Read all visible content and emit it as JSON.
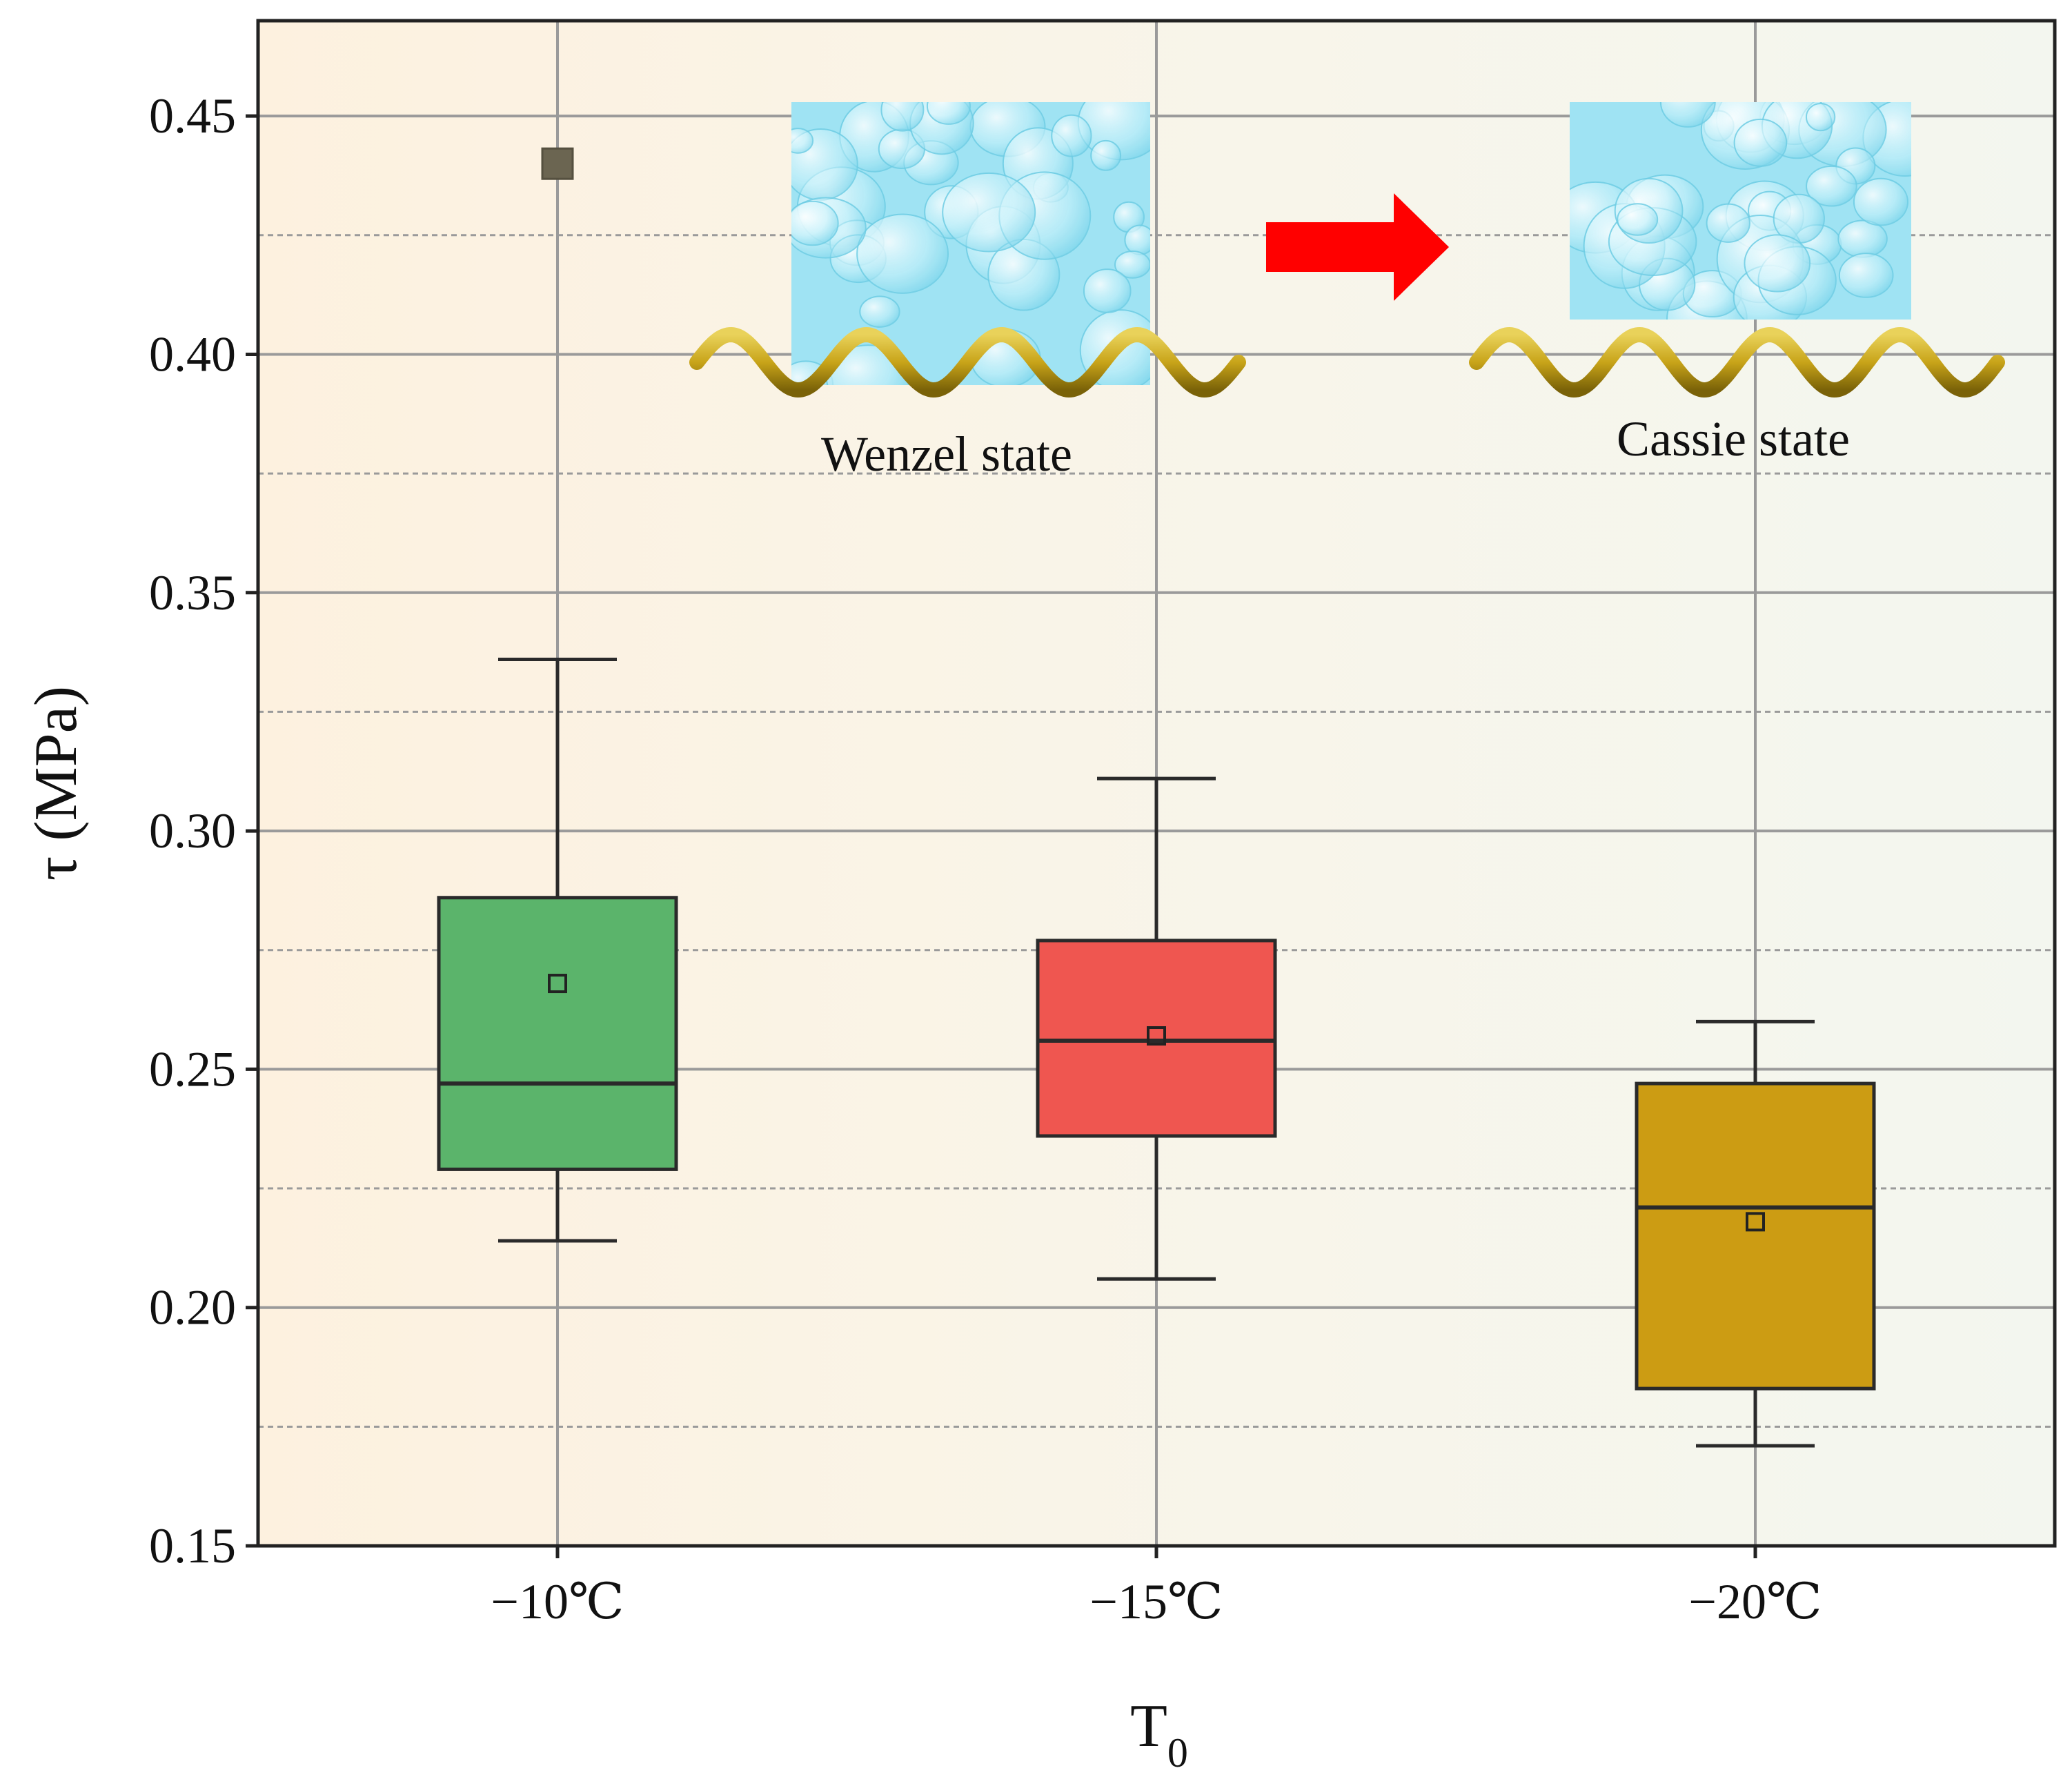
{
  "chart_data": {
    "type": "box",
    "xlabel": "T",
    "xlabel_sub": "0",
    "ylabel": "τ (MPa)",
    "ylim": [
      0.15,
      0.47
    ],
    "yticks": [
      0.15,
      0.2,
      0.25,
      0.3,
      0.35,
      0.4,
      0.45
    ],
    "ytick_labels": [
      "0.15",
      "0.20",
      "0.25",
      "0.30",
      "0.35",
      "0.40",
      "0.45"
    ],
    "minor_grid": true,
    "categories": [
      "−10℃",
      "−15℃",
      "−20℃"
    ],
    "boxes": [
      {
        "category": "−10℃",
        "whisker_low": 0.214,
        "q1": 0.229,
        "median": 0.247,
        "q3": 0.286,
        "whisker_high": 0.336,
        "mean": 0.268,
        "outliers": [
          0.44
        ],
        "color": "#5bb46b"
      },
      {
        "category": "−15℃",
        "whisker_low": 0.206,
        "q1": 0.236,
        "median": 0.256,
        "q3": 0.277,
        "whisker_high": 0.311,
        "mean": 0.257,
        "outliers": [],
        "color": "#ef5650"
      },
      {
        "category": "−20℃",
        "whisker_low": 0.171,
        "q1": 0.183,
        "median": 0.221,
        "q3": 0.247,
        "whisker_high": 0.26,
        "mean": 0.218,
        "outliers": [],
        "color": "#cc9c13"
      }
    ],
    "annotations": {
      "left_state": "Wenzel state",
      "right_state": "Cassie state"
    }
  },
  "colors": {
    "arrow": "#ff0000",
    "surface": "#c8a419",
    "water": "#a8e8f6",
    "grid": "#9a9a9a"
  }
}
